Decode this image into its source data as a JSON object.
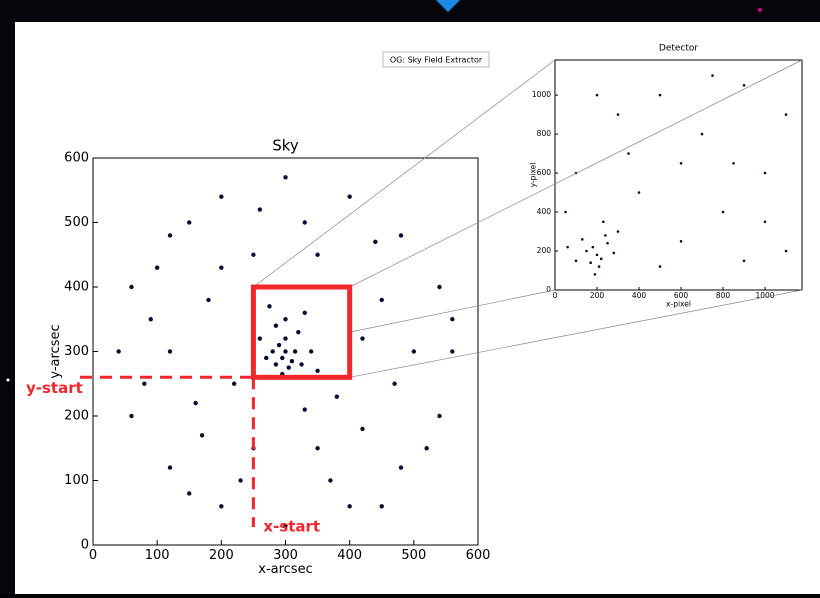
{
  "tooltip": "OG: Sky Field Extractor",
  "chart_data": [
    {
      "type": "scatter",
      "title": "Sky",
      "xlabel": "x-arcsec",
      "ylabel": "y-arcsec",
      "color": "#0a0a30",
      "xlim": [
        0,
        600
      ],
      "ylim": [
        0,
        600
      ],
      "xticks": [
        0,
        100,
        200,
        300,
        400,
        500,
        600
      ],
      "yticks": [
        0,
        100,
        200,
        300,
        400,
        500,
        600
      ],
      "x": [
        295,
        300,
        285,
        310,
        290,
        305,
        280,
        315,
        300,
        270,
        325,
        295,
        320,
        285,
        340,
        300,
        260,
        350,
        330,
        275,
        150,
        200,
        300,
        400,
        480,
        540,
        560,
        540,
        480,
        400,
        300,
        200,
        120,
        60,
        40,
        60,
        120,
        250,
        350,
        450,
        470,
        420,
        350,
        250,
        160,
        120,
        180,
        220,
        380,
        420,
        200,
        330,
        100,
        500,
        230,
        370,
        520,
        80,
        170,
        440,
        260,
        90,
        560,
        150,
        450,
        330
      ],
      "values": [
        290,
        300,
        280,
        285,
        310,
        275,
        300,
        300,
        320,
        290,
        280,
        265,
        330,
        340,
        300,
        350,
        320,
        270,
        360,
        370,
        500,
        540,
        570,
        540,
        480,
        400,
        300,
        200,
        120,
        60,
        30,
        60,
        120,
        200,
        300,
        400,
        480,
        450,
        450,
        380,
        250,
        180,
        150,
        150,
        220,
        300,
        380,
        250,
        230,
        320,
        430,
        500,
        430,
        300,
        100,
        100,
        150,
        250,
        170,
        470,
        520,
        350,
        350,
        80,
        60,
        210
      ],
      "region": {
        "x": [
          250,
          400
        ],
        "y": [
          260,
          400
        ]
      },
      "annotations": [
        "y-start",
        "x-start"
      ]
    },
    {
      "type": "scatter",
      "title": "Detector",
      "xlabel": "x-pixel",
      "ylabel": "y-pixel",
      "color": "#0a0a30",
      "xlim": [
        0,
        1176
      ],
      "ylim": [
        0,
        1180
      ],
      "xticks": [
        0,
        200,
        400,
        600,
        800,
        1000
      ],
      "yticks": [
        0,
        200,
        400,
        600,
        800,
        1000
      ],
      "x": [
        200,
        180,
        220,
        150,
        250,
        210,
        170,
        240,
        130,
        280,
        190,
        100,
        300,
        230,
        60,
        100,
        300,
        500,
        700,
        900,
        1100,
        1000,
        800,
        600,
        900,
        1100,
        400,
        600,
        200,
        50,
        750,
        350,
        1000,
        500,
        850
      ],
      "values": [
        180,
        220,
        160,
        200,
        240,
        120,
        140,
        280,
        260,
        190,
        80,
        150,
        300,
        350,
        220,
        600,
        900,
        1000,
        800,
        1050,
        900,
        600,
        400,
        250,
        150,
        200,
        500,
        650,
        1000,
        400,
        1100,
        700,
        350,
        120,
        650
      ]
    }
  ]
}
